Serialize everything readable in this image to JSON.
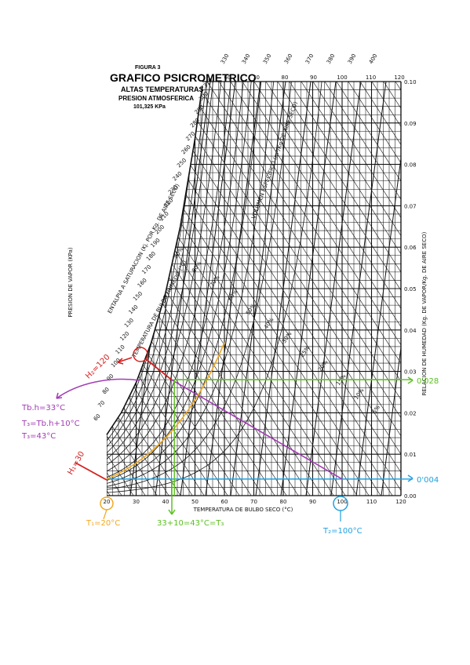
{
  "header": {
    "figure": "FIGURA 3",
    "title": "GRAFICO PSICROMETRICO",
    "subtitle": "ALTAS TEMPERATURAS",
    "line3": "PRESION ATMOSFERICA",
    "line4": "101,325 KPa"
  },
  "colors": {
    "grid": "#111111",
    "red": "#d42020",
    "purple": "#a23cb4",
    "orange": "#f0a820",
    "green": "#5cc020",
    "blue": "#20a0e0"
  },
  "chart_data": {
    "type": "line",
    "xlabel": "TEMPERATURA DE BULBO SECO (°C)",
    "ylabel_right": "RELACION DE HUMEDAD (Kg. DE VAPOR/Kg. DE AIRE SECO)",
    "ylabel_left": "PRESION DE VAPOR (KPa)",
    "enthalpy_axis_label": "ENTALPIA A SATURACION (Kj. POR Kg. DE AIRE SECO)",
    "wetbulb_label": "TEMPERATURA DE BULBO HUMEDO (°C)",
    "xlim": [
      20,
      120
    ],
    "ylim": [
      0,
      0.1
    ],
    "x_ticks": [
      "20",
      "30",
      "40",
      "50",
      "60",
      "70",
      "80",
      "90",
      "100",
      "110",
      "120"
    ],
    "y_ticks": [
      "0.00",
      "0.01",
      "0.02",
      "0.03",
      "0.04",
      "0.05",
      "0.06",
      "0.07",
      "0.08",
      "0.09",
      "0.10"
    ],
    "top_ticks": [
      "60",
      "70",
      "80",
      "90",
      "100",
      "110",
      "120"
    ],
    "top_enthalpy_ticks": [
      "330",
      "340",
      "350",
      "360",
      "370",
      "380",
      "390",
      "400"
    ],
    "diag_enthalpy_ticks": [
      "310",
      "300",
      "290",
      "280",
      "270",
      "260",
      "250",
      "240",
      "230",
      "220",
      "210",
      "200",
      "190",
      "180",
      "170",
      "160",
      "150",
      "140",
      "130",
      "120",
      "110",
      "100",
      "90",
      "80",
      "70",
      "60"
    ],
    "rh_labels": [
      "90%",
      "80%",
      "70%",
      "60%",
      "50%",
      "40%",
      "30%",
      "25%",
      "20%",
      "15%",
      "10%",
      "5%"
    ],
    "specific_volume_label": "VOLUMEN ESPECIFICO (m³/Kg DE AIRE SECO)",
    "saturation_curve": [
      [
        20,
        0.0147
      ],
      [
        25,
        0.0201
      ],
      [
        30,
        0.0273
      ],
      [
        35,
        0.0367
      ],
      [
        40,
        0.049
      ],
      [
        45,
        0.065
      ],
      [
        50,
        0.0862
      ],
      [
        52.5,
        0.099
      ]
    ],
    "annotations": {
      "h2": "H₂=120",
      "h1": "H₁=30",
      "tbh": "Tb.h=33°C",
      "t3_formula": "T₃=Tb.h+10°C",
      "t3_value": "T₃=43°C",
      "t1": "T₁=20°C",
      "t2": "T₂=100°C",
      "t3_green": "33+10=43°C=T₃",
      "w_green": "0'028",
      "w_blue": "0'004"
    },
    "process_lines": [
      {
        "color": "blue",
        "x": [
          20,
          120
        ],
        "y": [
          0.004,
          0.004
        ]
      },
      {
        "color": "purple",
        "x": [
          42,
          100
        ],
        "y": [
          0.028,
          0.004
        ]
      },
      {
        "color": "orange",
        "x": [
          20,
          60
        ],
        "y": [
          0.004,
          0.037
        ]
      },
      {
        "color": "green",
        "x": [
          43,
          120
        ],
        "y": [
          0.028,
          0.028
        ]
      }
    ]
  }
}
